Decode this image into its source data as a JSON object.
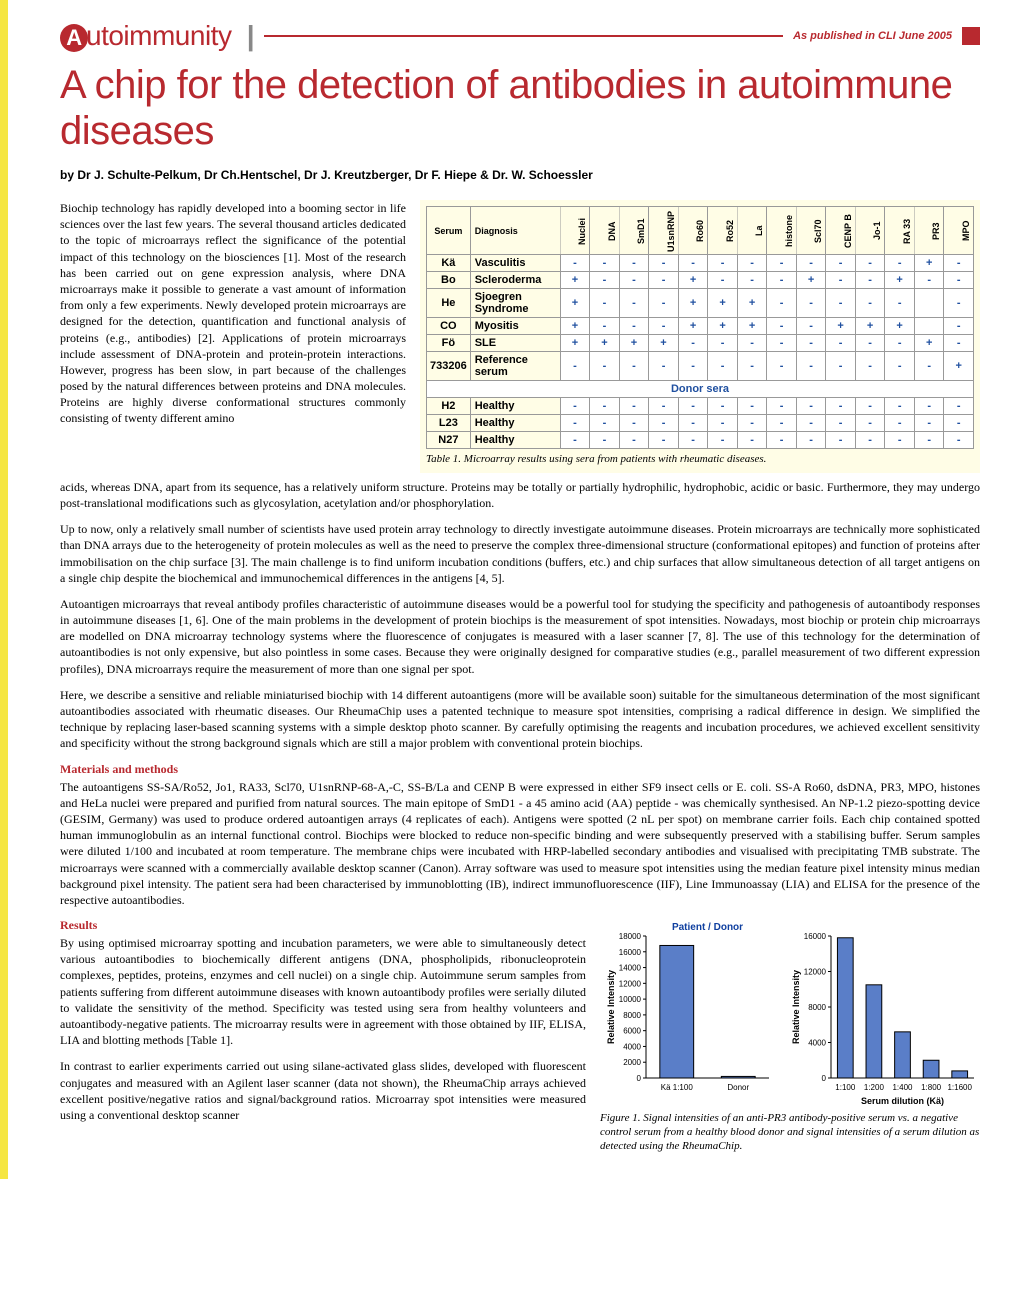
{
  "header": {
    "section": "utoimmunity",
    "section_cap": "A",
    "pub_note": "As published in CLI  June 2005"
  },
  "title": "A chip for the detection of antibodies in autoimmune diseases",
  "byline": "by Dr J. Schulte-Pelkum, Dr Ch.Hentschel, Dr J. Kreutzberger, Dr F. Hiepe & Dr. W. Schoessler",
  "para1": "Biochip technology has rapidly developed into a booming sector in life sciences over the last few years. The several thousand articles dedicated to the topic of microarrays reflect the significance of the potential impact of this technology on the biosciences [1]. Most of the research has been carried out on gene expression analysis, where DNA microarrays make it possible to generate a vast amount of information from only a few experiments. Newly developed protein microarrays are designed for the detection, quantification and functional analysis of proteins (e.g., antibodies) [2]. Applications of protein microarrays include assessment of DNA-protein and protein-protein interactions. However, progress has been slow, in part because of the challenges posed by the natural differences between proteins and DNA molecules. Proteins are highly diverse conformational structures commonly consisting of twenty different amino",
  "para1b": "acids, whereas DNA, apart from its sequence, has a relatively uniform structure. Proteins may be totally or partially hydrophilic, hydrophobic, acidic or basic. Furthermore, they may undergo post-translational modifications such as glycosylation, acetylation and/or phosphorylation.",
  "para2": "Up to now, only a relatively small number of scientists have used protein array technology to directly investigate autoimmune diseases. Protein microarrays are technically more sophisticated than DNA arrays due to the heterogeneity of protein molecules as well as the need to preserve the complex three-dimensional structure (conformational epitopes) and function of proteins after immobilisation on the chip surface [3]. The main challenge is to find uniform incubation conditions (buffers, etc.) and chip surfaces that allow simultaneous detection of all target antigens on a single chip despite the biochemical and immunochemical differences in the antigens [4, 5].",
  "para3": "Autoantigen microarrays that reveal antibody profiles characteristic of autoimmune diseases would be a powerful tool for studying the specificity and pathogenesis of autoantibody responses in autoimmune diseases [1, 6]. One of the main problems in the development of protein biochips is the measurement of spot intensities. Nowadays, most biochip or protein chip microarrays are modelled on DNA microarray technology systems where the fluorescence of conjugates is measured with a laser scanner [7, 8]. The use of this technology for the determination of autoantibodies is not only expensive, but also pointless in some cases. Because they were originally designed for comparative studies (e.g., parallel measurement of two different expression profiles), DNA microarrays require the measurement of more than one signal per spot.",
  "para4": "Here, we describe a sensitive and reliable miniaturised biochip with 14 different autoantigens (more will be available soon) suitable for the simultaneous determination of the most significant autoantibodies associated with rheumatic diseases. Our RheumaChip uses a patented technique to measure spot intensities, comprising a radical difference in design. We simplified the technique by replacing laser-based scanning systems with a simple desktop photo scanner. By carefully optimising the reagents and incubation procedures, we achieved excellent sensitivity and specificity without the strong background signals which are still a major problem with conventional protein biochips.",
  "methods_head": "Materials and methods",
  "methods_body": "The autoantigens SS-SA/Ro52, Jo1, RA33, Scl70, U1snRNP-68-A,-C, SS-B/La and CENP B were expressed in either SF9 insect cells or E. coli. SS-A Ro60, dsDNA, PR3, MPO, histones and HeLa nuclei were prepared and purified from natural sources. The main epitope of SmD1 - a 45 amino acid (AA) peptide - was chemically synthesised. An NP-1.2 piezo-spotting device (GESIM, Germany) was used to produce ordered autoantigen arrays (4 replicates of each). Antigens were spotted (2 nL per spot) on membrane carrier foils. Each chip contained spotted human immunoglobulin as an internal functional control. Biochips were blocked to reduce non-specific binding and were subsequently preserved with a stabilising buffer. Serum samples were diluted 1/100 and incubated at room temperature. The membrane chips were incubated with HRP-labelled secondary antibodies and visualised with precipitating TMB substrate. The microarrays were scanned with a commercially available desktop scanner (Canon). Array software was used to measure spot intensities using the median feature pixel intensity minus median background pixel intensity. The patient sera had been characterised by immunoblotting (IB), indirect immunofluorescence (IIF), Line Immunoassay (LIA) and ELISA for the presence of the respective autoantibodies.",
  "results_head": "Results",
  "results_p1": "By using optimised microarray spotting and incubation parameters, we were able to simultaneously detect various autoantibodies to biochemically different antigens (DNA, phospholipids, ribonucleoprotein complexes, peptides, proteins, enzymes and cell nuclei) on a single chip. Autoimmune serum samples from patients suffering from different autoimmune diseases with known autoantibody profiles were serially diluted to validate the sensitivity of the method. Specificity was tested using sera from healthy volunteers and autoantibody-negative patients. The microarray results were in agreement with those obtained by IIF, ELISA, LIA and blotting methods [Table 1].",
  "results_p2": "In contrast to earlier experiments carried out using silane-activated glass slides, developed with fluorescent conjugates and measured with an Agilent laser scanner (data not shown), the RheumaChip arrays achieved excellent positive/negative ratios and signal/background ratios. Microarray spot intensities were measured using a conventional desktop scanner",
  "table1": {
    "caption": "Table 1. Microarray results using sera from patients with rheumatic diseases.",
    "col_headers": [
      "Serum",
      "Diagnosis"
    ],
    "antigen_cols": [
      "Nuclei",
      "DNA",
      "SmD1",
      "U1snRNP",
      "Ro60",
      "Ro52",
      "La",
      "histone",
      "Scl70",
      "CENP B",
      "Jo-1",
      "RA 33",
      "PR3",
      "MPO"
    ],
    "rows": [
      {
        "serum": "Kä",
        "diag": "Vasculitis",
        "cells": [
          "-",
          "-",
          "-",
          "-",
          "-",
          "-",
          "-",
          "-",
          "-",
          "-",
          "-",
          "-",
          "+",
          "-"
        ]
      },
      {
        "serum": "Bo",
        "diag": "Scleroderma",
        "cells": [
          "+",
          "-",
          "-",
          "-",
          "+",
          "-",
          "-",
          "-",
          "+",
          "-",
          "-",
          "+",
          "-",
          "-"
        ]
      },
      {
        "serum": "He",
        "diag": "Sjoegren Syndrome",
        "cells": [
          "+",
          "-",
          "-",
          "-",
          "+",
          "+",
          "+",
          "-",
          "-",
          "-",
          "-",
          "-",
          "",
          "-"
        ]
      },
      {
        "serum": "CO",
        "diag": "Myositis",
        "cells": [
          "+",
          "-",
          "-",
          "-",
          "+",
          "+",
          "+",
          "-",
          "-",
          "+",
          "+",
          "+",
          "",
          "-"
        ]
      },
      {
        "serum": "Fö",
        "diag": "SLE",
        "cells": [
          "+",
          "+",
          "+",
          "+",
          "-",
          "-",
          "-",
          "-",
          "-",
          "-",
          "-",
          "-",
          "+",
          "-"
        ]
      },
      {
        "serum": "733206",
        "diag": "Reference serum",
        "cells": [
          "-",
          "-",
          "-",
          "-",
          "-",
          "-",
          "-",
          "-",
          "-",
          "-",
          "-",
          "-",
          "-",
          "+"
        ]
      }
    ],
    "donor_label": "Donor sera",
    "donor_rows": [
      {
        "serum": "H2",
        "diag": "Healthy",
        "cells": [
          "-",
          "-",
          "-",
          "-",
          "-",
          "-",
          "-",
          "-",
          "-",
          "-",
          "-",
          "-",
          "-",
          "-"
        ]
      },
      {
        "serum": "L23",
        "diag": "Healthy",
        "cells": [
          "-",
          "-",
          "-",
          "-",
          "-",
          "-",
          "-",
          "-",
          "-",
          "-",
          "-",
          "-",
          "-",
          "-"
        ]
      },
      {
        "serum": "N27",
        "diag": "Healthy",
        "cells": [
          "-",
          "-",
          "-",
          "-",
          "-",
          "-",
          "-",
          "-",
          "-",
          "-",
          "-",
          "-",
          "-",
          "-"
        ]
      }
    ],
    "header_color": "#fffde6",
    "border_color": "#999999",
    "cell_text_color": "#2050a0"
  },
  "figure1": {
    "caption": "Figure 1. Signal intensities of an anti-PR3 antibody-positive serum vs. a negative control serum from a healthy blood donor and signal intensities of a serum dilution as detected using the RheumaChip.",
    "left_chart": {
      "type": "bar",
      "title": "Patient / Donor",
      "ylabel": "Relative Intensity",
      "ylim": [
        0,
        18000
      ],
      "ytick_step": 2000,
      "categories": [
        "Kä 1:100",
        "Donor"
      ],
      "values": [
        16800,
        200
      ],
      "bar_color": "#5a7ec8",
      "bar_border": "#000000",
      "background": "#ffffff",
      "title_color": "#1040a0"
    },
    "right_chart": {
      "type": "bar",
      "title": "",
      "ylabel": "Relative Intensity",
      "xlabel": "Serum dilution (Kä)",
      "ylim": [
        0,
        16000
      ],
      "ytick_step": 4000,
      "categories": [
        "1:100",
        "1:200",
        "1:400",
        "1:800",
        "1:1600"
      ],
      "values": [
        15800,
        10500,
        5200,
        2000,
        800
      ],
      "bar_color": "#5a7ec8",
      "bar_border": "#000000",
      "background": "#ffffff"
    }
  }
}
